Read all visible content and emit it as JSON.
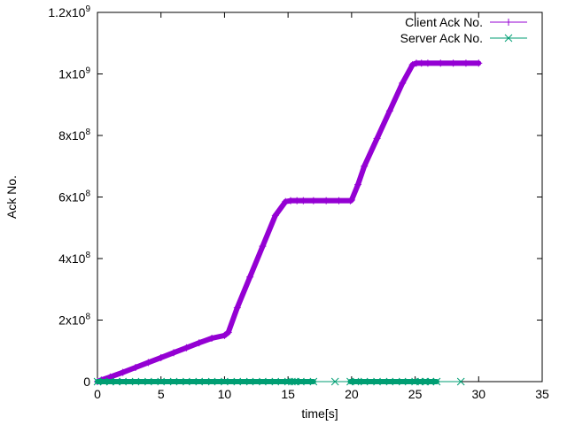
{
  "chart_data": {
    "type": "scatter",
    "xlabel": "time[s]",
    "ylabel": "Ack No.",
    "xlim": [
      0,
      35
    ],
    "ylim": [
      0,
      1200000000
    ],
    "x_ticks": [
      {
        "value": 0,
        "label": "0"
      },
      {
        "value": 5,
        "label": "5"
      },
      {
        "value": 10,
        "label": "10"
      },
      {
        "value": 15,
        "label": "15"
      },
      {
        "value": 20,
        "label": "20"
      },
      {
        "value": 25,
        "label": "25"
      },
      {
        "value": 30,
        "label": "30"
      },
      {
        "value": 35,
        "label": "35"
      }
    ],
    "y_ticks": [
      {
        "value": 0,
        "mantissa": "0",
        "base": "",
        "exp": ""
      },
      {
        "value": 200000000,
        "mantissa": "2x10",
        "base": "",
        "exp": "8"
      },
      {
        "value": 400000000,
        "mantissa": "4x10",
        "base": "",
        "exp": "8"
      },
      {
        "value": 600000000,
        "mantissa": "6x10",
        "base": "",
        "exp": "8"
      },
      {
        "value": 800000000,
        "mantissa": "8x10",
        "base": "",
        "exp": "8"
      },
      {
        "value": 1000000000,
        "mantissa": "1x10",
        "base": "",
        "exp": "9"
      },
      {
        "value": 1200000000,
        "mantissa": "1.2x10",
        "base": "",
        "exp": "9"
      }
    ],
    "legend_position": "top-right",
    "grid": false,
    "series": [
      {
        "name": "Client Ack No.",
        "color": "#9400d3",
        "marker": "plus",
        "x": [
          0,
          0.3,
          1,
          2,
          3,
          4,
          5,
          6,
          7,
          8,
          9,
          10,
          10.3,
          11,
          12,
          13,
          14,
          14.8,
          15.2,
          15.7,
          16.2,
          17,
          18,
          19,
          19.9,
          20,
          20.5,
          21,
          22,
          23,
          24,
          24.8,
          25.1,
          25.5,
          26,
          27,
          28,
          29,
          30
        ],
        "y": [
          0,
          5000000,
          15000000,
          30000000,
          46000000,
          62000000,
          78000000,
          94000000,
          110000000,
          126000000,
          141000000,
          150000000,
          160000000,
          240000000,
          340000000,
          440000000,
          540000000,
          585000000,
          588000000,
          588000000,
          588000000,
          588000000,
          588000000,
          588000000,
          588000000,
          590000000,
          640000000,
          700000000,
          790000000,
          880000000,
          970000000,
          1030000000,
          1035000000,
          1035000000,
          1035000000,
          1035000000,
          1035000000,
          1035000000,
          1035000000
        ]
      },
      {
        "name": "Server Ack No.",
        "color": "#009e73",
        "marker": "cross",
        "x": [
          0,
          0.5,
          1,
          1.5,
          2,
          3,
          4,
          5,
          6,
          7,
          8,
          9,
          10,
          11,
          12,
          13,
          14,
          15,
          15.3,
          15.6,
          16,
          17,
          18.7,
          19.9,
          20.3,
          21,
          22,
          23,
          24,
          25,
          25.4,
          25.8,
          26.2,
          26.7,
          28.6
        ],
        "y": [
          0,
          0,
          0,
          0,
          0,
          0,
          0,
          0,
          0,
          0,
          0,
          0,
          0,
          0,
          0,
          0,
          0,
          0,
          0,
          0,
          0,
          0,
          0,
          0,
          0,
          0,
          0,
          0,
          0,
          0,
          0,
          0,
          0,
          0,
          0
        ]
      }
    ]
  }
}
